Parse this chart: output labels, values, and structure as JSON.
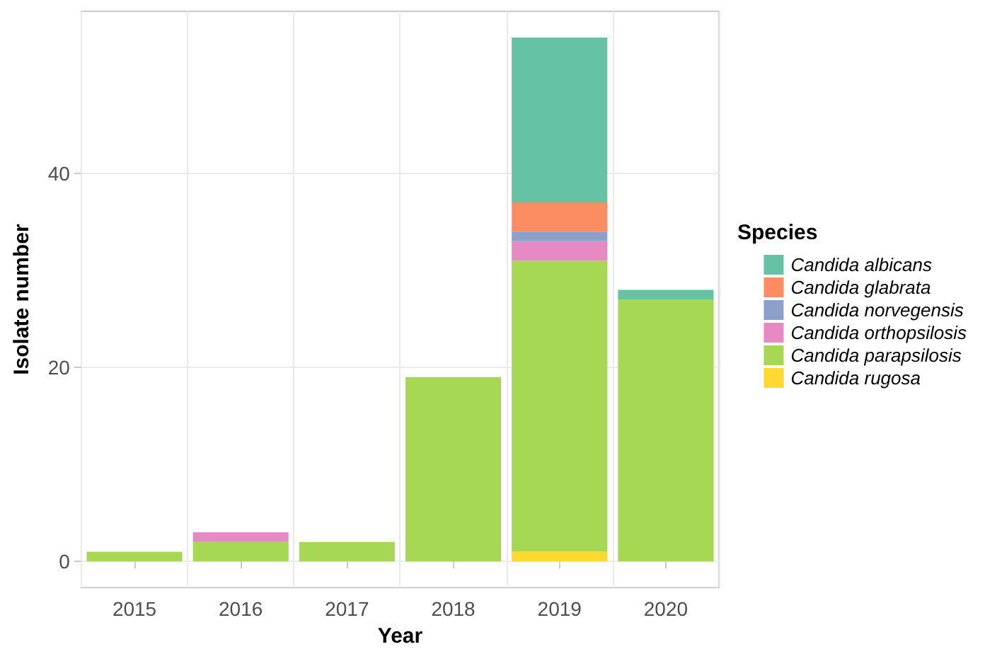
{
  "chart_data": {
    "type": "bar",
    "stacked": true,
    "xlabel": "Year",
    "ylabel": "Isolate number",
    "legend_title": "Species",
    "categories": [
      "2015",
      "2016",
      "2017",
      "2018",
      "2019",
      "2020"
    ],
    "series": [
      {
        "name": "Candida rugosa",
        "color": "#ffd92f",
        "values": [
          null,
          null,
          null,
          null,
          1,
          null
        ]
      },
      {
        "name": "Candida parapsilosis",
        "color": "#a6d854",
        "values": [
          1,
          2,
          2,
          19,
          30,
          27
        ]
      },
      {
        "name": "Candida orthopsilosis",
        "color": "#e78ac3",
        "values": [
          null,
          1,
          null,
          null,
          2,
          null
        ]
      },
      {
        "name": "Candida norvegensis",
        "color": "#8da0cb",
        "values": [
          null,
          null,
          null,
          null,
          1,
          null
        ]
      },
      {
        "name": "Candida glabrata",
        "color": "#fc8d62",
        "values": [
          null,
          null,
          null,
          null,
          3,
          null
        ]
      },
      {
        "name": "Candida albicans",
        "color": "#66c2a5",
        "values": [
          null,
          null,
          null,
          null,
          17,
          1
        ]
      }
    ],
    "ylim": [
      -2.7,
      56.7
    ],
    "yticks": [
      0,
      20,
      40
    ],
    "grid": true,
    "legend": "right"
  }
}
